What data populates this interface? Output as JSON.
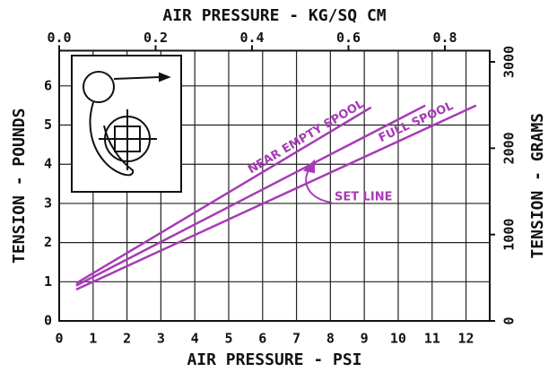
{
  "chart_data": {
    "type": "line",
    "xlabel": "AIR PRESSURE - PSI",
    "x2label": "AIR PRESSURE - KG/SQ CM",
    "ylabel": "TENSION - POUNDS",
    "y2label": "TENSION - GRAMS",
    "xlim": [
      0,
      12.7
    ],
    "xticks": [
      0,
      1,
      2,
      3,
      4,
      5,
      6,
      7,
      8,
      9,
      10,
      11,
      12
    ],
    "x2lim": [
      0,
      0.893
    ],
    "x2ticks": [
      {
        "value": 0,
        "label": "0.0"
      },
      {
        "value": 0.2,
        "label": "0.2"
      },
      {
        "value": 0.4,
        "label": "0.4"
      },
      {
        "value": 0.6,
        "label": "0.6"
      },
      {
        "value": 0.8,
        "label": "0.8"
      }
    ],
    "ylim": [
      0,
      6.9
    ],
    "yticks": [
      0,
      1,
      2,
      3,
      4,
      5,
      6
    ],
    "y2lim": [
      0,
      3130
    ],
    "y2ticks": [
      0,
      1000,
      2000,
      3000
    ],
    "grid": true,
    "series": [
      {
        "name": "NEAR EMPTY SPOOL",
        "color": "#a63bb5",
        "x": [
          0.5,
          9.2
        ],
        "values": [
          0.96,
          5.45
        ]
      },
      {
        "name": "SET LINE",
        "color": "#a63bb5",
        "x": [
          0.5,
          10.8
        ],
        "values": [
          0.9,
          5.5
        ]
      },
      {
        "name": "FULL SPOOL",
        "color": "#a63bb5",
        "x": [
          0.5,
          12.3
        ],
        "values": [
          0.8,
          5.5
        ]
      }
    ]
  }
}
